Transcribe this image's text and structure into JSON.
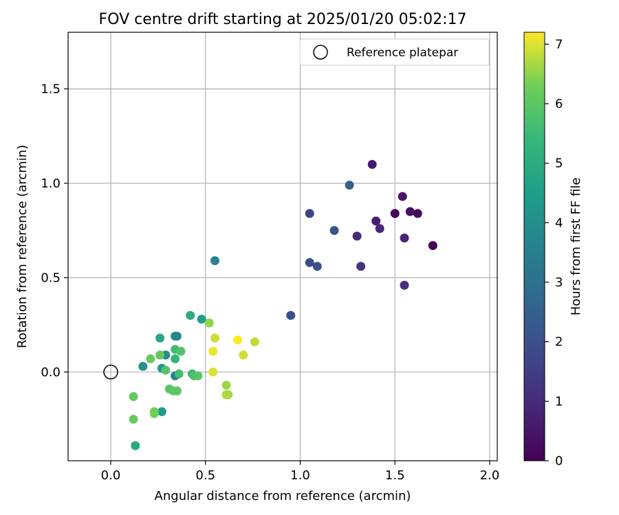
{
  "chart_data": {
    "type": "scatter",
    "title": "FOV centre drift starting at 2025/01/20 05:02:17",
    "xlabel": "Angular distance from reference (arcmin)",
    "ylabel": "Rotation from reference (arcmin)",
    "xlim": [
      -0.225,
      2.04
    ],
    "ylim": [
      -0.47,
      1.8
    ],
    "xticks": [
      0.0,
      0.5,
      1.0,
      1.5,
      2.0
    ],
    "xtick_labels": [
      "0.0",
      "0.5",
      "1.0",
      "1.5",
      "2.0"
    ],
    "yticks": [
      0.0,
      0.5,
      1.0,
      1.5
    ],
    "ytick_labels": [
      "0.0",
      "0.5",
      "1.0",
      "1.5"
    ],
    "grid": true,
    "colormap": "viridis",
    "colorbar": {
      "label": "Hours from first FF file",
      "range": [
        0,
        7.2
      ],
      "ticks": [
        0,
        1,
        2,
        3,
        4,
        5,
        6,
        7
      ],
      "tick_labels": [
        "0",
        "1",
        "2",
        "3",
        "4",
        "5",
        "6",
        "7"
      ]
    },
    "legend": {
      "placement": "upper-right",
      "entries": [
        {
          "label": "Reference platepar",
          "marker": "open-circle",
          "x": 0.0,
          "y": 0.0
        }
      ]
    },
    "series": [
      {
        "points": [
          {
            "x": 1.7,
            "y": 0.67,
            "c": 0.05
          },
          {
            "x": 1.5,
            "y": 0.84,
            "c": 0.1
          },
          {
            "x": 1.62,
            "y": 0.84,
            "c": 0.2
          },
          {
            "x": 1.58,
            "y": 0.85,
            "c": 0.35
          },
          {
            "x": 1.54,
            "y": 0.93,
            "c": 0.5
          },
          {
            "x": 1.38,
            "y": 1.1,
            "c": 0.6
          },
          {
            "x": 1.4,
            "y": 0.8,
            "c": 0.7
          },
          {
            "x": 1.55,
            "y": 0.71,
            "c": 0.8
          },
          {
            "x": 1.42,
            "y": 0.76,
            "c": 0.9
          },
          {
            "x": 1.3,
            "y": 0.72,
            "c": 1.0
          },
          {
            "x": 1.55,
            "y": 0.46,
            "c": 1.1
          },
          {
            "x": 1.32,
            "y": 0.56,
            "c": 1.2
          },
          {
            "x": 1.05,
            "y": 0.84,
            "c": 1.7
          },
          {
            "x": 1.05,
            "y": 0.58,
            "c": 1.9
          },
          {
            "x": 1.09,
            "y": 0.56,
            "c": 2.0
          },
          {
            "x": 1.18,
            "y": 0.75,
            "c": 2.2
          },
          {
            "x": 0.95,
            "y": 0.3,
            "c": 2.0
          },
          {
            "x": 1.26,
            "y": 0.99,
            "c": 2.5
          },
          {
            "x": 0.55,
            "y": 0.59,
            "c": 3.6
          },
          {
            "x": 0.35,
            "y": 0.19,
            "c": 3.6
          },
          {
            "x": 0.34,
            "y": 0.19,
            "c": 3.8
          },
          {
            "x": 0.34,
            "y": -0.02,
            "c": 3.5
          },
          {
            "x": 0.29,
            "y": 0.09,
            "c": 4.0
          },
          {
            "x": 0.17,
            "y": 0.03,
            "c": 4.1
          },
          {
            "x": 0.27,
            "y": 0.02,
            "c": 4.3
          },
          {
            "x": 0.27,
            "y": -0.21,
            "c": 4.4
          },
          {
            "x": 0.48,
            "y": 0.28,
            "c": 4.5
          },
          {
            "x": 0.26,
            "y": 0.18,
            "c": 4.8
          },
          {
            "x": 0.13,
            "y": -0.39,
            "c": 4.9
          },
          {
            "x": 0.42,
            "y": 0.3,
            "c": 5.0
          },
          {
            "x": 0.34,
            "y": 0.07,
            "c": 5.3
          },
          {
            "x": 0.43,
            "y": -0.01,
            "c": 5.4
          },
          {
            "x": 0.34,
            "y": 0.12,
            "c": 5.6
          },
          {
            "x": 0.36,
            "y": -0.01,
            "c": 5.6
          },
          {
            "x": 0.37,
            "y": 0.11,
            "c": 5.8
          },
          {
            "x": 0.44,
            "y": -0.02,
            "c": 5.8
          },
          {
            "x": 0.46,
            "y": -0.02,
            "c": 5.9
          },
          {
            "x": 0.29,
            "y": 0.01,
            "c": 5.9
          },
          {
            "x": 0.31,
            "y": -0.09,
            "c": 5.9
          },
          {
            "x": 0.33,
            "y": -0.1,
            "c": 6.0
          },
          {
            "x": 0.35,
            "y": -0.1,
            "c": 6.0
          },
          {
            "x": 0.26,
            "y": 0.09,
            "c": 6.1
          },
          {
            "x": 0.21,
            "y": 0.07,
            "c": 6.2
          },
          {
            "x": 0.12,
            "y": -0.13,
            "c": 6.1
          },
          {
            "x": 0.12,
            "y": -0.25,
            "c": 6.2
          },
          {
            "x": 0.23,
            "y": -0.21,
            "c": 6.3
          },
          {
            "x": 0.23,
            "y": -0.22,
            "c": 6.3
          },
          {
            "x": 0.52,
            "y": 0.26,
            "c": 6.5
          },
          {
            "x": 0.61,
            "y": -0.07,
            "c": 6.6
          },
          {
            "x": 0.62,
            "y": -0.12,
            "c": 6.6
          },
          {
            "x": 0.61,
            "y": -0.12,
            "c": 6.7
          },
          {
            "x": 0.76,
            "y": 0.16,
            "c": 6.8
          },
          {
            "x": 0.55,
            "y": 0.18,
            "c": 6.9
          },
          {
            "x": 0.7,
            "y": 0.09,
            "c": 6.9
          },
          {
            "x": 0.54,
            "y": 0.0,
            "c": 7.0
          },
          {
            "x": 0.54,
            "y": 0.11,
            "c": 7.1
          },
          {
            "x": 0.67,
            "y": 0.17,
            "c": 7.2
          }
        ]
      }
    ]
  }
}
